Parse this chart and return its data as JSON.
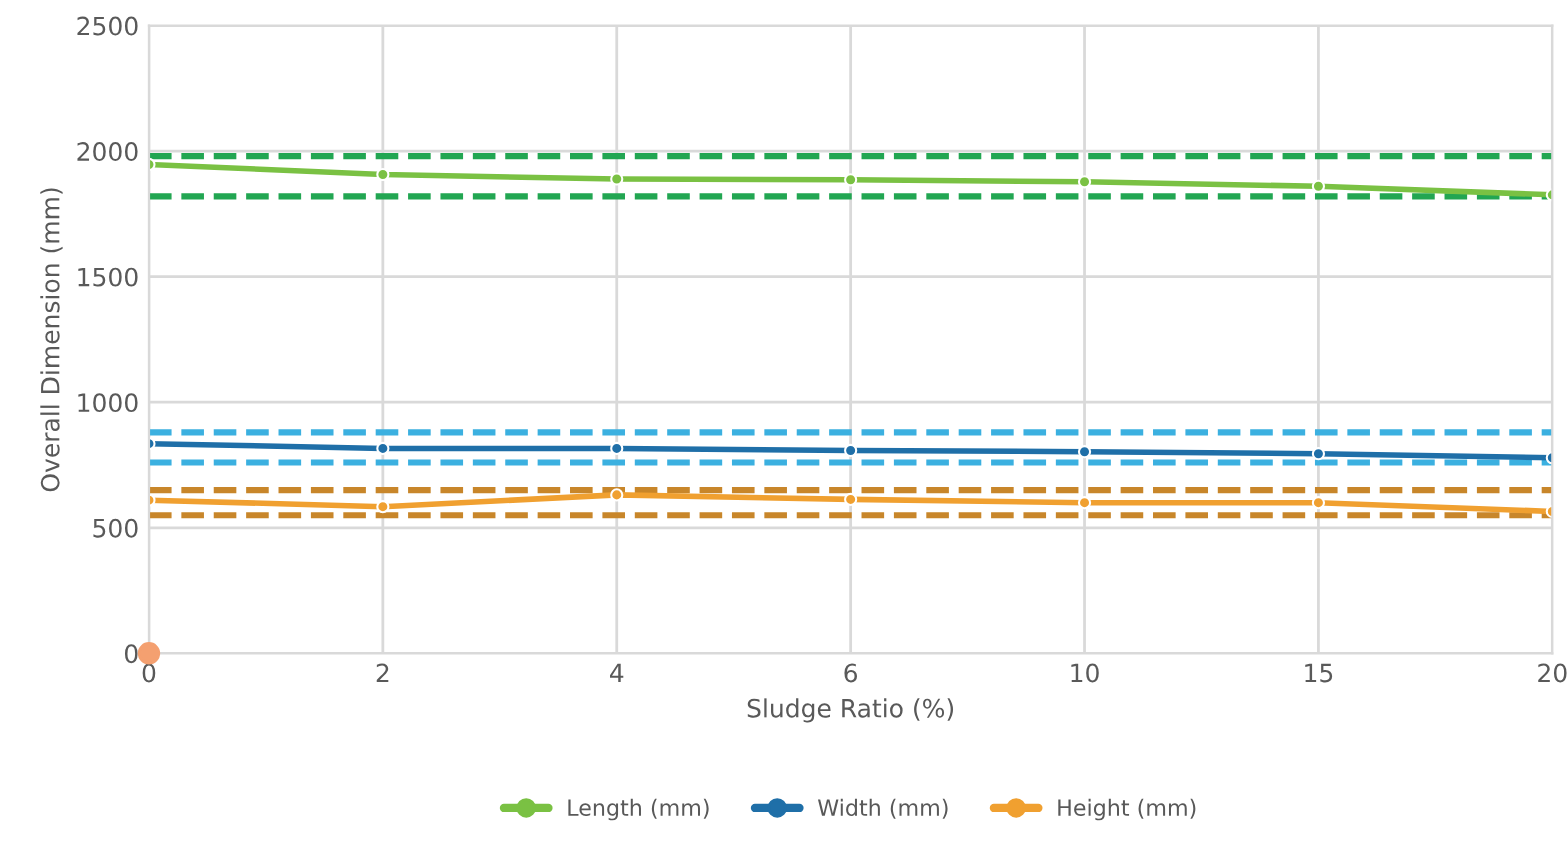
{
  "chart_data": {
    "type": "line",
    "xlabel": "Sludge Ratio (%)",
    "ylabel": "Overall Dimension (mm)",
    "categories": [
      "0",
      "2",
      "4",
      "6",
      "10",
      "15",
      "20"
    ],
    "series": [
      {
        "name": "Length (mm)",
        "color": "#7ac143",
        "values": [
          1947,
          1907,
          1889,
          1886,
          1878,
          1860,
          1826
        ]
      },
      {
        "name": "Width (mm)",
        "color": "#1f6fa8",
        "values": [
          835,
          816,
          816,
          808,
          803,
          795,
          779
        ]
      },
      {
        "name": "Height (mm)",
        "color": "#f0a030",
        "values": [
          610,
          584,
          631,
          613,
          600,
          600,
          565
        ]
      },
      {
        "type": "scatter",
        "color": "#f4a070",
        "values": [
          0,
          null,
          null,
          null,
          null,
          null,
          null
        ]
      }
    ],
    "ref_lines": [
      {
        "axis": "y",
        "value": 1980,
        "color": "#22a652",
        "line_style": "dashed"
      },
      {
        "axis": "y",
        "value": 1820,
        "color": "#22a652",
        "line_style": "dashed"
      },
      {
        "axis": "y",
        "value": 880,
        "color": "#3bb0e0",
        "line_style": "dashed"
      },
      {
        "axis": "y",
        "value": 760,
        "color": "#3bb0e0",
        "line_style": "dashed"
      },
      {
        "axis": "y",
        "value": 650,
        "color": "#c8862a",
        "line_style": "dashed"
      },
      {
        "axis": "y",
        "value": 550,
        "color": "#c8862a",
        "line_style": "dashed"
      }
    ],
    "ylim": [
      0,
      2500
    ],
    "yticks": [
      0,
      500,
      1000,
      1500,
      2000,
      2500
    ],
    "grid": true,
    "legend": "bottom",
    "marker": "circle",
    "line_style": "solid"
  }
}
